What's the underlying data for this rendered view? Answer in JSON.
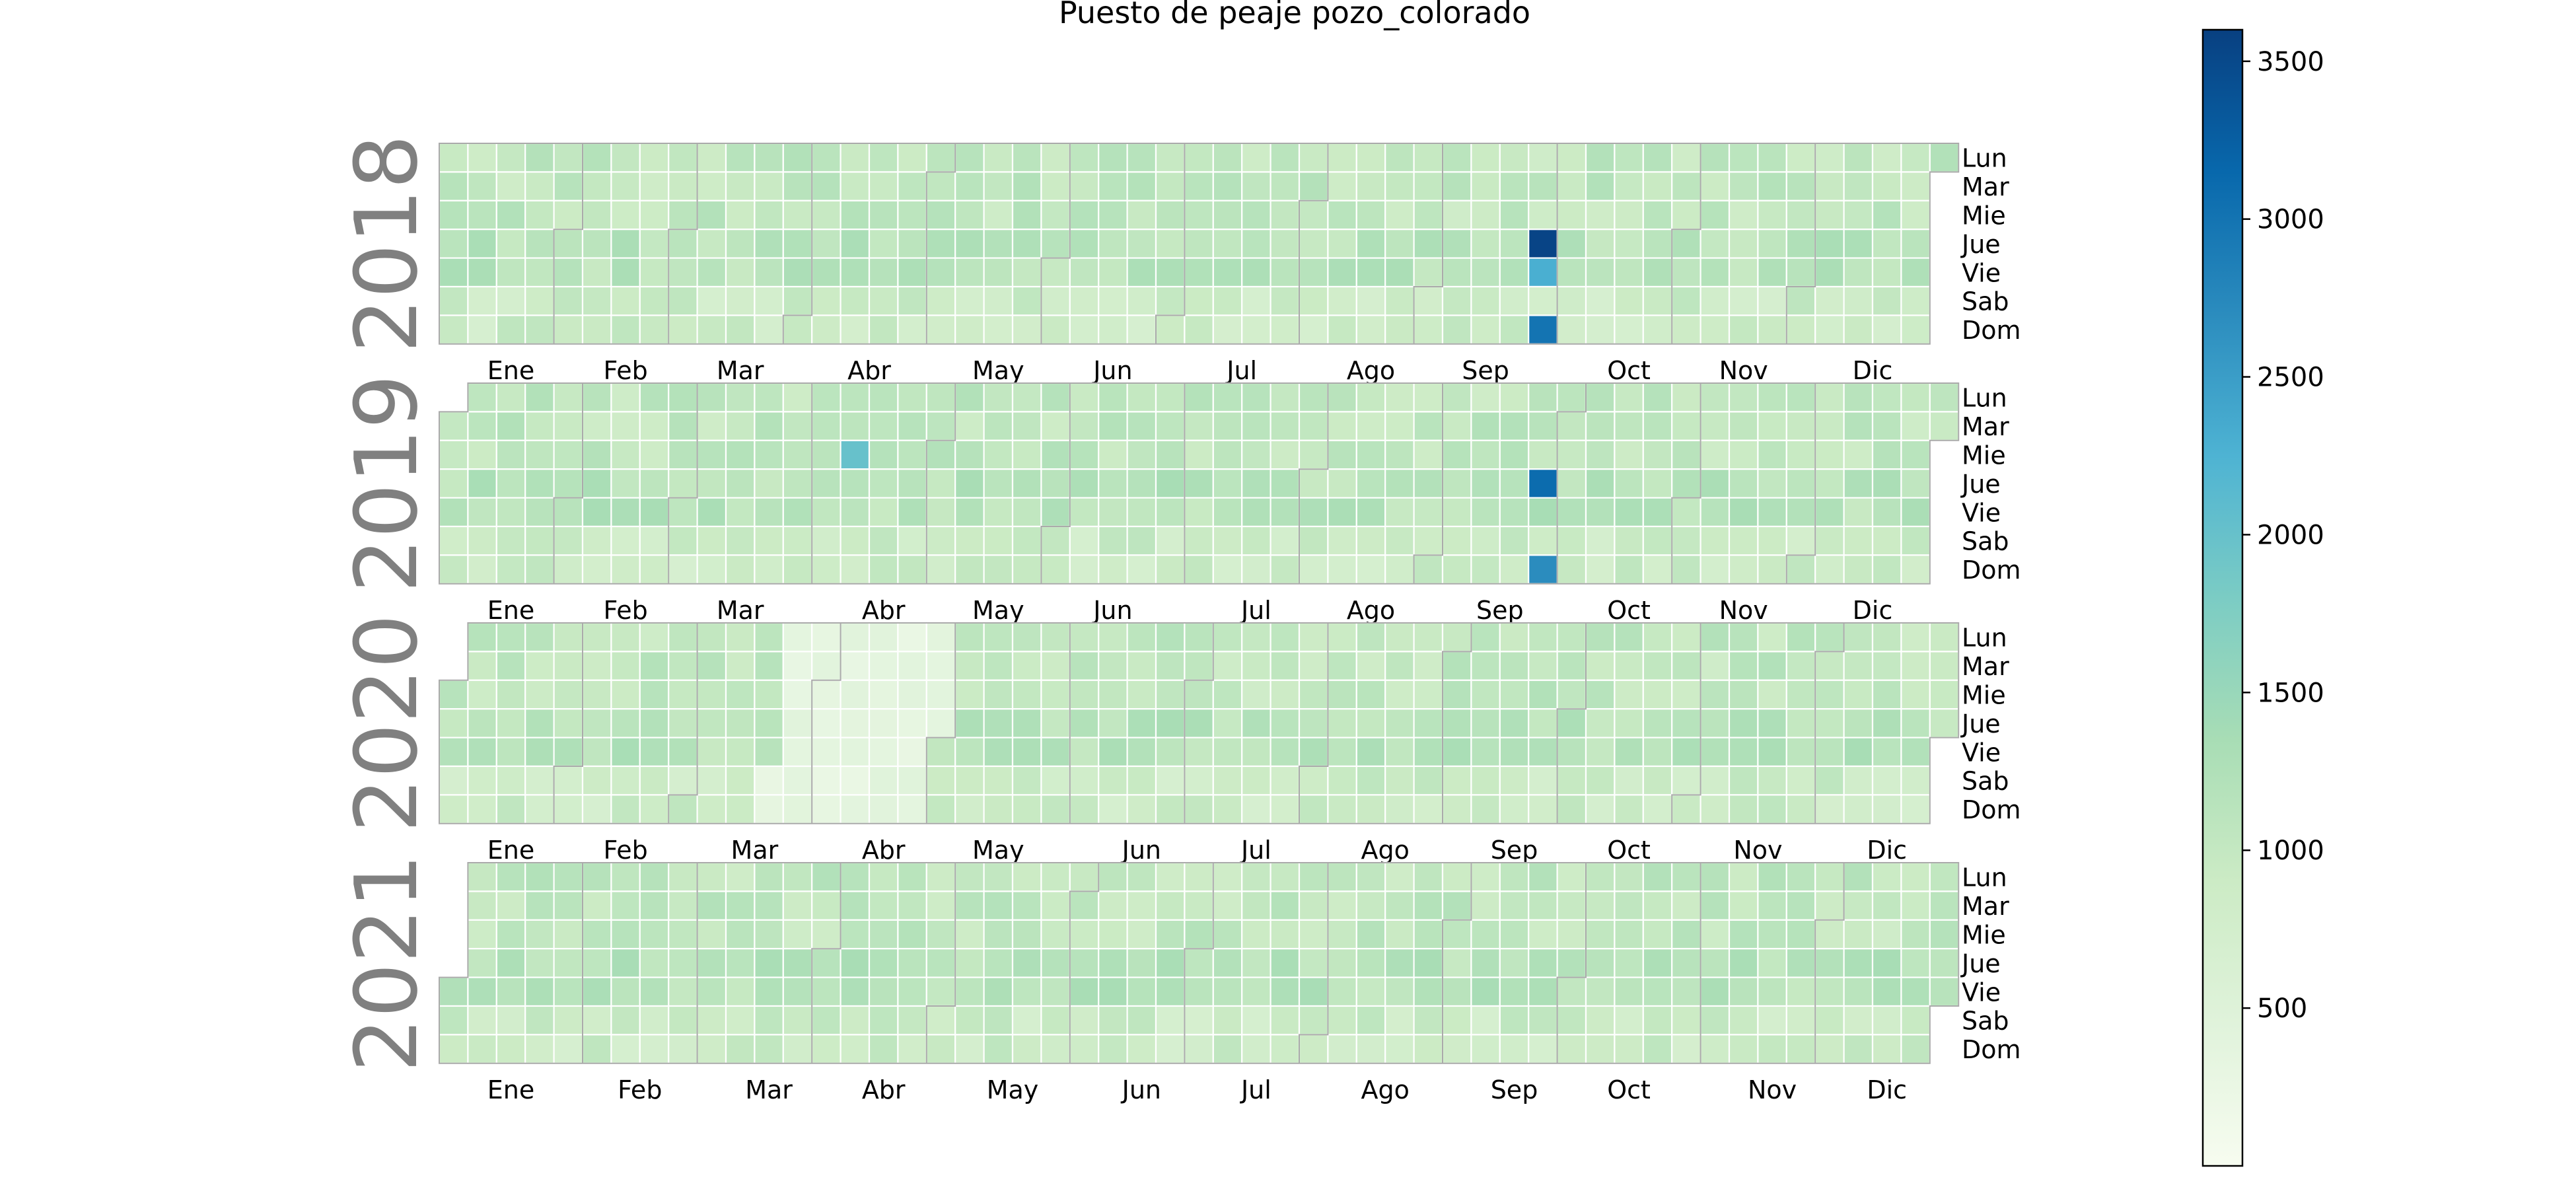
{
  "chart_data": {
    "type": "heatmap",
    "subtype": "calendar",
    "title": "Puesto de peaje pozo_colorado",
    "years": [
      "2018",
      "2019",
      "2020",
      "2021"
    ],
    "weekday_labels": [
      "Lun",
      "Mar",
      "Mie",
      "Jue",
      "Vie",
      "Sab",
      "Dom"
    ],
    "month_labels": [
      "Ene",
      "Feb",
      "Mar",
      "Abr",
      "May",
      "Jun",
      "Jul",
      "Ago",
      "Sep",
      "Oct",
      "Nov",
      "Dic"
    ],
    "colorbar": {
      "colormap": "GnBu",
      "range": [
        0,
        3600
      ],
      "ticks": [
        500,
        1000,
        1500,
        2000,
        2500,
        3000,
        3500
      ]
    },
    "value_estimate": {
      "typical_range": [
        600,
        1500
      ],
      "notable_days": [
        {
          "date": "2018-09-27",
          "value": 3550
        },
        {
          "date": "2018-09-28",
          "value": 2300
        },
        {
          "date": "2018-09-30",
          "value": 3000
        },
        {
          "date": "2019-09-26",
          "value": 3100
        },
        {
          "date": "2019-09-29",
          "value": 2700
        },
        {
          "date": "2019-04-10",
          "value": 2000
        }
      ]
    },
    "colors": {
      "low": "#f7fcf0",
      "mid": "#a8ddb5",
      "high": "#084081",
      "month_border": "#aaaaaa",
      "year_label": "#808080"
    }
  }
}
